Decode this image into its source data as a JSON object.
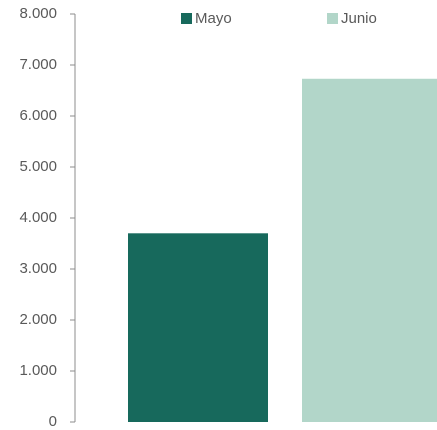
{
  "chart_data": {
    "type": "bar",
    "categories": [
      ""
    ],
    "series": [
      {
        "name": "Mayo",
        "values": [
          3700
        ],
        "color": "#17695c"
      },
      {
        "name": "Junio",
        "values": [
          6730
        ],
        "color": "#b2d6c9"
      }
    ],
    "ylim": [
      0,
      8000
    ],
    "yticks": [
      0,
      1000,
      2000,
      3000,
      4000,
      5000,
      6000,
      7000,
      8000
    ],
    "ytick_labels": [
      "0",
      "1.000",
      "2.000",
      "3.000",
      "4.000",
      "5.000",
      "6.000",
      "7.000",
      "8.000"
    ],
    "axis_color": "#8c8c8c",
    "grid": false,
    "legend_position": "top"
  }
}
